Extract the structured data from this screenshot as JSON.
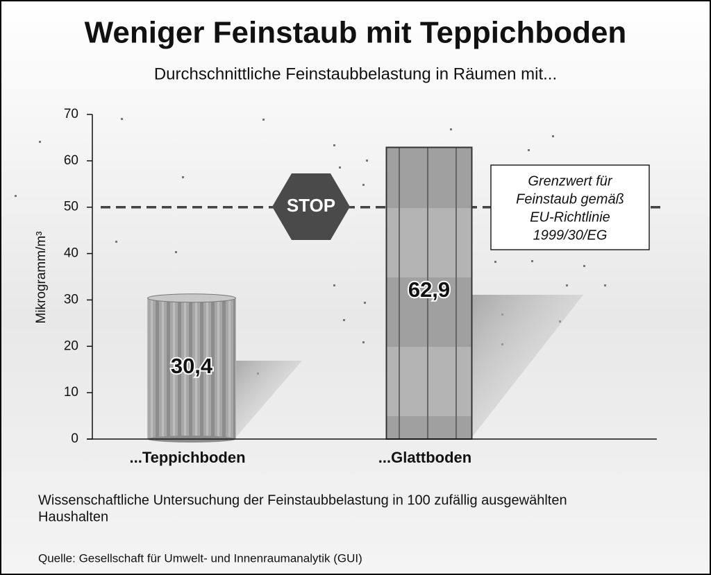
{
  "chart_data": {
    "type": "bar",
    "title": "Weniger Feinstaub mit Teppichboden",
    "subtitle": "Durchschnittliche Feinstaubbelastung in Räumen mit...",
    "y_label": "Mikrogramm/m³",
    "categories": [
      "...Teppichboden",
      "...Glattboden"
    ],
    "values": [
      30.4,
      62.9
    ],
    "value_labels": [
      "30,4",
      "62,9"
    ],
    "color": "#9a9a9a",
    "ylim": [
      0,
      70
    ],
    "yticks": [
      0,
      10,
      20,
      30,
      40,
      50,
      60,
      70
    ],
    "reference_line": {
      "value": 50,
      "label": [
        "Grenzwert für",
        "Feinstaub gemäß",
        "EU-Richtlinie",
        "1999/30/EG"
      ]
    },
    "stop_sign": "STOP",
    "note": [
      "Wissenschaftliche Untersuchung der Feinstaubbelastung in 100 zufällig ausgewählten",
      "Haushalten"
    ],
    "source": "Quelle: Gesellschaft für Umwelt- und Innenraumanalytik (GUI)"
  }
}
